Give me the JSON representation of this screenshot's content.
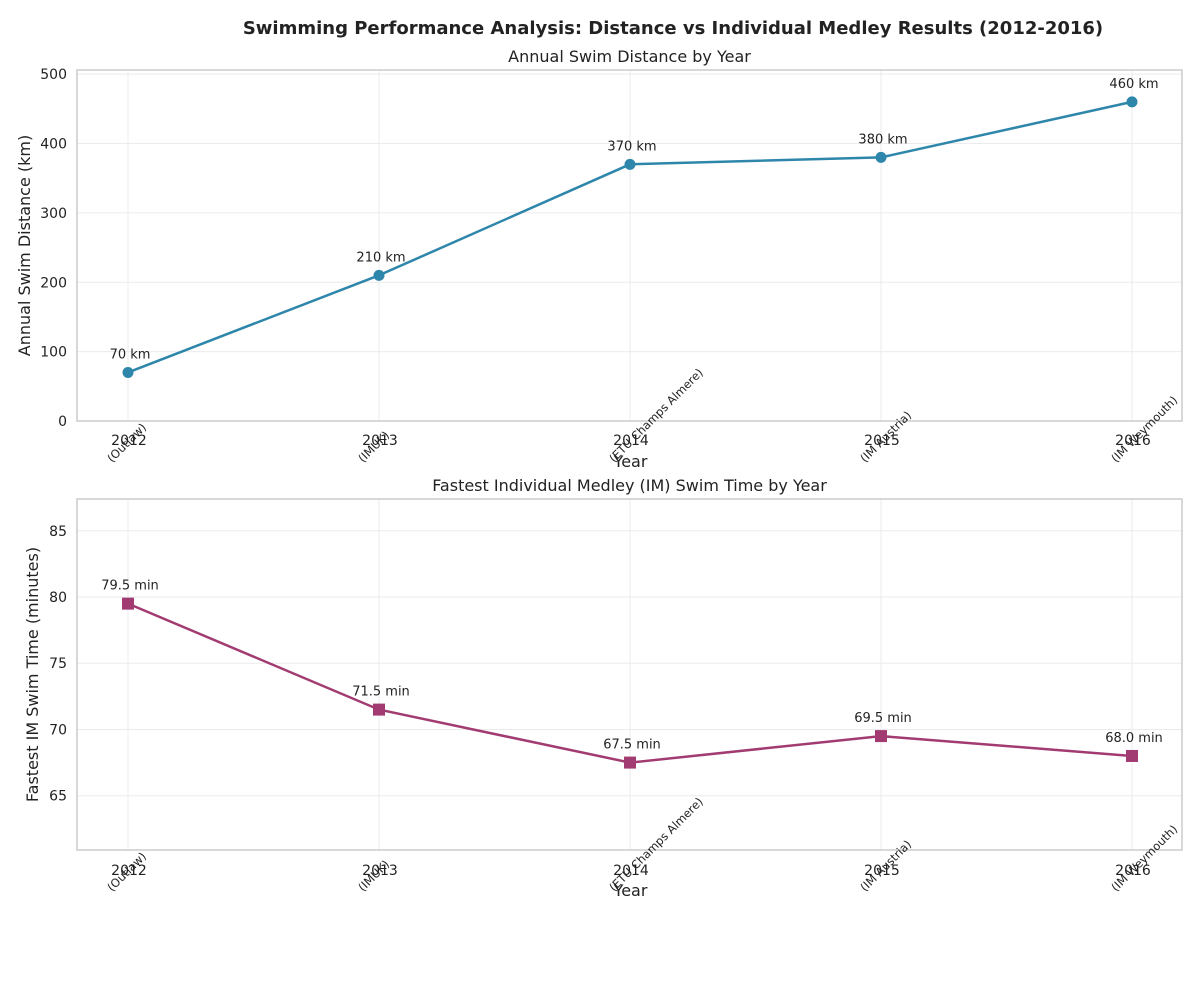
{
  "figure": {
    "suptitle": "Swimming Performance Analysis: Distance vs Individual Medley Results (2012-2016)"
  },
  "chart_data": [
    {
      "type": "line",
      "title": "Annual Swim Distance by Year",
      "xlabel": "Year",
      "ylabel": "Annual Swim Distance (km)",
      "categories": [
        "2012",
        "2013",
        "2014",
        "2015",
        "2016"
      ],
      "event_labels": [
        "(Outlaw)",
        "(IMUK)",
        "(ETU Champs Almere)",
        "(IM Austria)",
        "(IM Weymouth)"
      ],
      "values": [
        70,
        210,
        370,
        380,
        460
      ],
      "data_labels": [
        "70 km",
        "210 km",
        "370 km",
        "380 km",
        "460 km"
      ],
      "yticks": [
        0,
        100,
        200,
        300,
        400,
        500
      ],
      "ylim": [
        0,
        506
      ],
      "marker": "circle",
      "color": "#2e86ab",
      "grid": true
    },
    {
      "type": "line",
      "title": "Fastest Individual Medley (IM) Swim Time by Year",
      "xlabel": "Year",
      "ylabel": "Fastest IM Swim Time (minutes)",
      "categories": [
        "2012",
        "2013",
        "2014",
        "2015",
        "2016"
      ],
      "event_labels": [
        "(Outlaw)",
        "(IMUK)",
        "(ETU Champs Almere)",
        "(IM Austria)",
        "(IM Weymouth)"
      ],
      "values": [
        79.5,
        71.5,
        67.5,
        69.5,
        68.0
      ],
      "data_labels": [
        "79.5 min",
        "71.5 min",
        "67.5 min",
        "69.5 min",
        "68.0 min"
      ],
      "yticks": [
        65,
        70,
        75,
        80,
        85
      ],
      "ylim": [
        60.9,
        87.4
      ],
      "marker": "square",
      "color": "#a23b72",
      "grid": true
    }
  ]
}
